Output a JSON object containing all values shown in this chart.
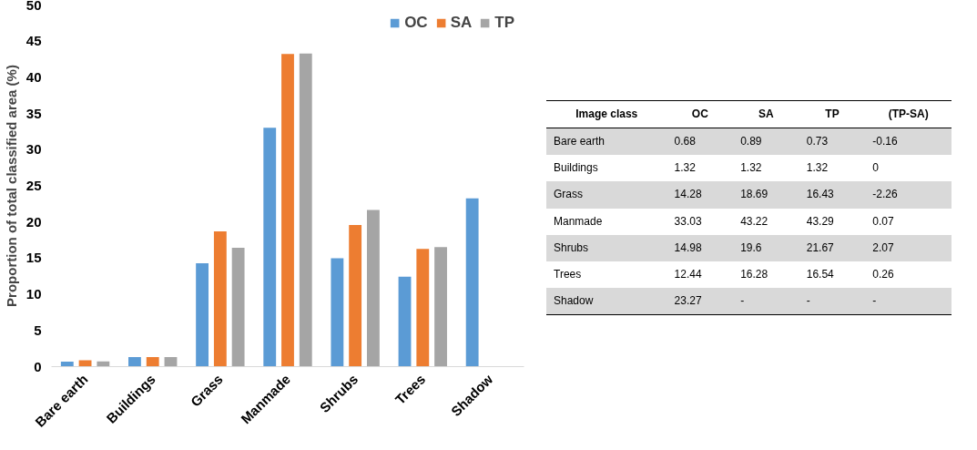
{
  "chart_data": [
    {
      "type": "bar",
      "ylabel": "Proportion of total classified area (%)",
      "categories": [
        "Bare earth",
        "Buildings",
        "Grass",
        "Manmade",
        "Shrubs",
        "Trees",
        "Shadow"
      ],
      "series": [
        {
          "name": "OC",
          "color": "#5b9bd5",
          "values": [
            0.68,
            1.32,
            14.28,
            33.03,
            14.98,
            12.44,
            23.27
          ]
        },
        {
          "name": "SA",
          "color": "#ed7d31",
          "values": [
            0.89,
            1.32,
            18.69,
            43.22,
            19.6,
            16.28,
            null
          ]
        },
        {
          "name": "TP",
          "color": "#a5a5a5",
          "values": [
            0.73,
            1.32,
            16.43,
            43.29,
            21.67,
            16.54,
            null
          ]
        }
      ],
      "ylim": [
        0,
        50
      ],
      "yticks": [
        0,
        5,
        10,
        15,
        20,
        25,
        30,
        35,
        40,
        45,
        50
      ],
      "grid": false,
      "legend": "top right"
    },
    {
      "type": "other",
      "legend_title": "Image class",
      "categories": [
        "OC",
        "SA",
        "TP",
        "(TP-SA)"
      ],
      "data_labels": true,
      "series": [
        {
          "name": "Bare earth",
          "color": "#d9d9d9",
          "values": [
            0.68,
            0.89,
            0.73,
            -0.16
          ]
        },
        {
          "name": "Buildings",
          "color": "#ffffff",
          "values": [
            1.32,
            1.32,
            1.32,
            0
          ]
        },
        {
          "name": "Grass",
          "color": "#d9d9d9",
          "values": [
            14.28,
            18.69,
            16.43,
            -2.26
          ]
        },
        {
          "name": "Manmade",
          "color": "#ffffff",
          "values": [
            33.03,
            43.22,
            43.29,
            0.07
          ]
        },
        {
          "name": "Shrubs",
          "color": "#d9d9d9",
          "values": [
            14.98,
            19.6,
            21.67,
            2.07
          ]
        },
        {
          "name": "Trees",
          "color": "#ffffff",
          "values": [
            12.44,
            16.28,
            16.54,
            0.26
          ]
        },
        {
          "name": "Shadow",
          "color": "#d9d9d9",
          "values": [
            23.27,
            null,
            null,
            null
          ],
          "value_labels": [
            "23.27",
            "-",
            "-",
            "-"
          ]
        }
      ]
    }
  ]
}
